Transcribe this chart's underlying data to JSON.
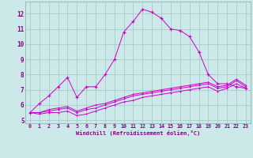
{
  "xlabel": "Windchill (Refroidissement éolien,°C)",
  "bg_color": "#cce8e8",
  "grid_color": "#aacccc",
  "line_color": "#cc00cc",
  "xlim": [
    -0.5,
    23.5
  ],
  "ylim": [
    4.8,
    12.8
  ],
  "xticks": [
    0,
    1,
    2,
    3,
    4,
    5,
    6,
    7,
    8,
    9,
    10,
    11,
    12,
    13,
    14,
    15,
    16,
    17,
    18,
    19,
    20,
    21,
    22,
    23
  ],
  "yticks": [
    5,
    6,
    7,
    8,
    9,
    10,
    11,
    12
  ],
  "series1_x": [
    0,
    1,
    2,
    3,
    4,
    5,
    6,
    7,
    8,
    9,
    10,
    11,
    12,
    13,
    14,
    15,
    16,
    17,
    18,
    19,
    20,
    21,
    22,
    23
  ],
  "series1_y": [
    5.5,
    6.1,
    6.6,
    7.2,
    7.8,
    6.5,
    7.2,
    7.2,
    8.0,
    9.0,
    10.8,
    11.5,
    12.3,
    12.1,
    11.7,
    11.0,
    10.9,
    10.5,
    9.5,
    8.0,
    7.4,
    7.4,
    7.2,
    7.1
  ],
  "series2_x": [
    0,
    1,
    2,
    3,
    4,
    5,
    6,
    7,
    8,
    9,
    10,
    11,
    12,
    13,
    14,
    15,
    16,
    17,
    18,
    19,
    20,
    21,
    22,
    23
  ],
  "series2_y": [
    5.5,
    5.4,
    5.5,
    5.5,
    5.6,
    5.3,
    5.4,
    5.6,
    5.8,
    6.0,
    6.2,
    6.3,
    6.5,
    6.6,
    6.7,
    6.8,
    6.9,
    7.0,
    7.1,
    7.2,
    6.9,
    7.1,
    7.4,
    7.1
  ],
  "series3_x": [
    0,
    1,
    2,
    3,
    4,
    5,
    6,
    7,
    8,
    9,
    10,
    11,
    12,
    13,
    14,
    15,
    16,
    17,
    18,
    19,
    20,
    21,
    22,
    23
  ],
  "series3_y": [
    5.5,
    5.5,
    5.6,
    5.7,
    5.8,
    5.5,
    5.7,
    5.8,
    6.0,
    6.2,
    6.4,
    6.6,
    6.7,
    6.8,
    6.9,
    7.0,
    7.1,
    7.2,
    7.3,
    7.4,
    7.1,
    7.2,
    7.6,
    7.2
  ],
  "series4_x": [
    0,
    1,
    2,
    3,
    4,
    5,
    6,
    7,
    8,
    9,
    10,
    11,
    12,
    13,
    14,
    15,
    16,
    17,
    18,
    19,
    20,
    21,
    22,
    23
  ],
  "series4_y": [
    5.5,
    5.5,
    5.7,
    5.8,
    5.9,
    5.6,
    5.8,
    6.0,
    6.1,
    6.3,
    6.5,
    6.7,
    6.8,
    6.9,
    7.0,
    7.1,
    7.2,
    7.3,
    7.4,
    7.5,
    7.2,
    7.3,
    7.7,
    7.3
  ]
}
